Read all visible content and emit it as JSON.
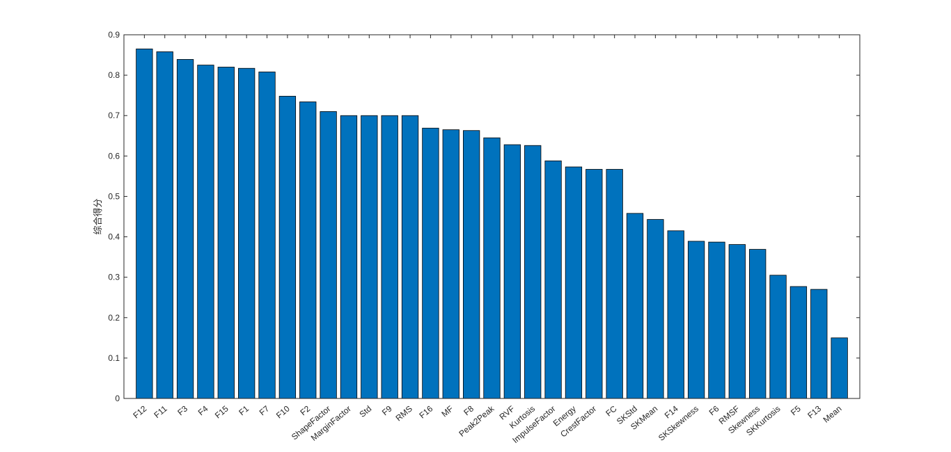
{
  "chart_data": {
    "type": "bar",
    "title": "",
    "xlabel": "",
    "ylabel": "综合得分",
    "ylim": [
      0,
      0.9
    ],
    "yticks": [
      "0",
      "0.1",
      "0.2",
      "0.3",
      "0.4",
      "0.5",
      "0.6",
      "0.7",
      "0.8",
      "0.9"
    ],
    "bar_color": "#0072BD",
    "categories": [
      "F12",
      "F11",
      "F3",
      "F4",
      "F15",
      "F1",
      "F7",
      "F10",
      "F2",
      "ShapeFactor",
      "MarginFactor",
      "Std",
      "F9",
      "RMS",
      "F16",
      "MF",
      "F8",
      "Peak2Peak",
      "RVF",
      "Kurtosis",
      "ImpulseFactor",
      "Energy",
      "CrestFactor",
      "FC",
      "SKStd",
      "SKMean",
      "F14",
      "SKSkewness",
      "F6",
      "RMSF",
      "Skewness",
      "SKKurtosis",
      "F5",
      "F13",
      "Mean"
    ],
    "values": [
      0.865,
      0.858,
      0.839,
      0.825,
      0.82,
      0.817,
      0.808,
      0.748,
      0.734,
      0.71,
      0.7,
      0.7,
      0.7,
      0.7,
      0.669,
      0.665,
      0.663,
      0.645,
      0.628,
      0.626,
      0.588,
      0.573,
      0.567,
      0.567,
      0.458,
      0.443,
      0.415,
      0.389,
      0.387,
      0.381,
      0.369,
      0.305,
      0.277,
      0.27,
      0.15
    ]
  }
}
